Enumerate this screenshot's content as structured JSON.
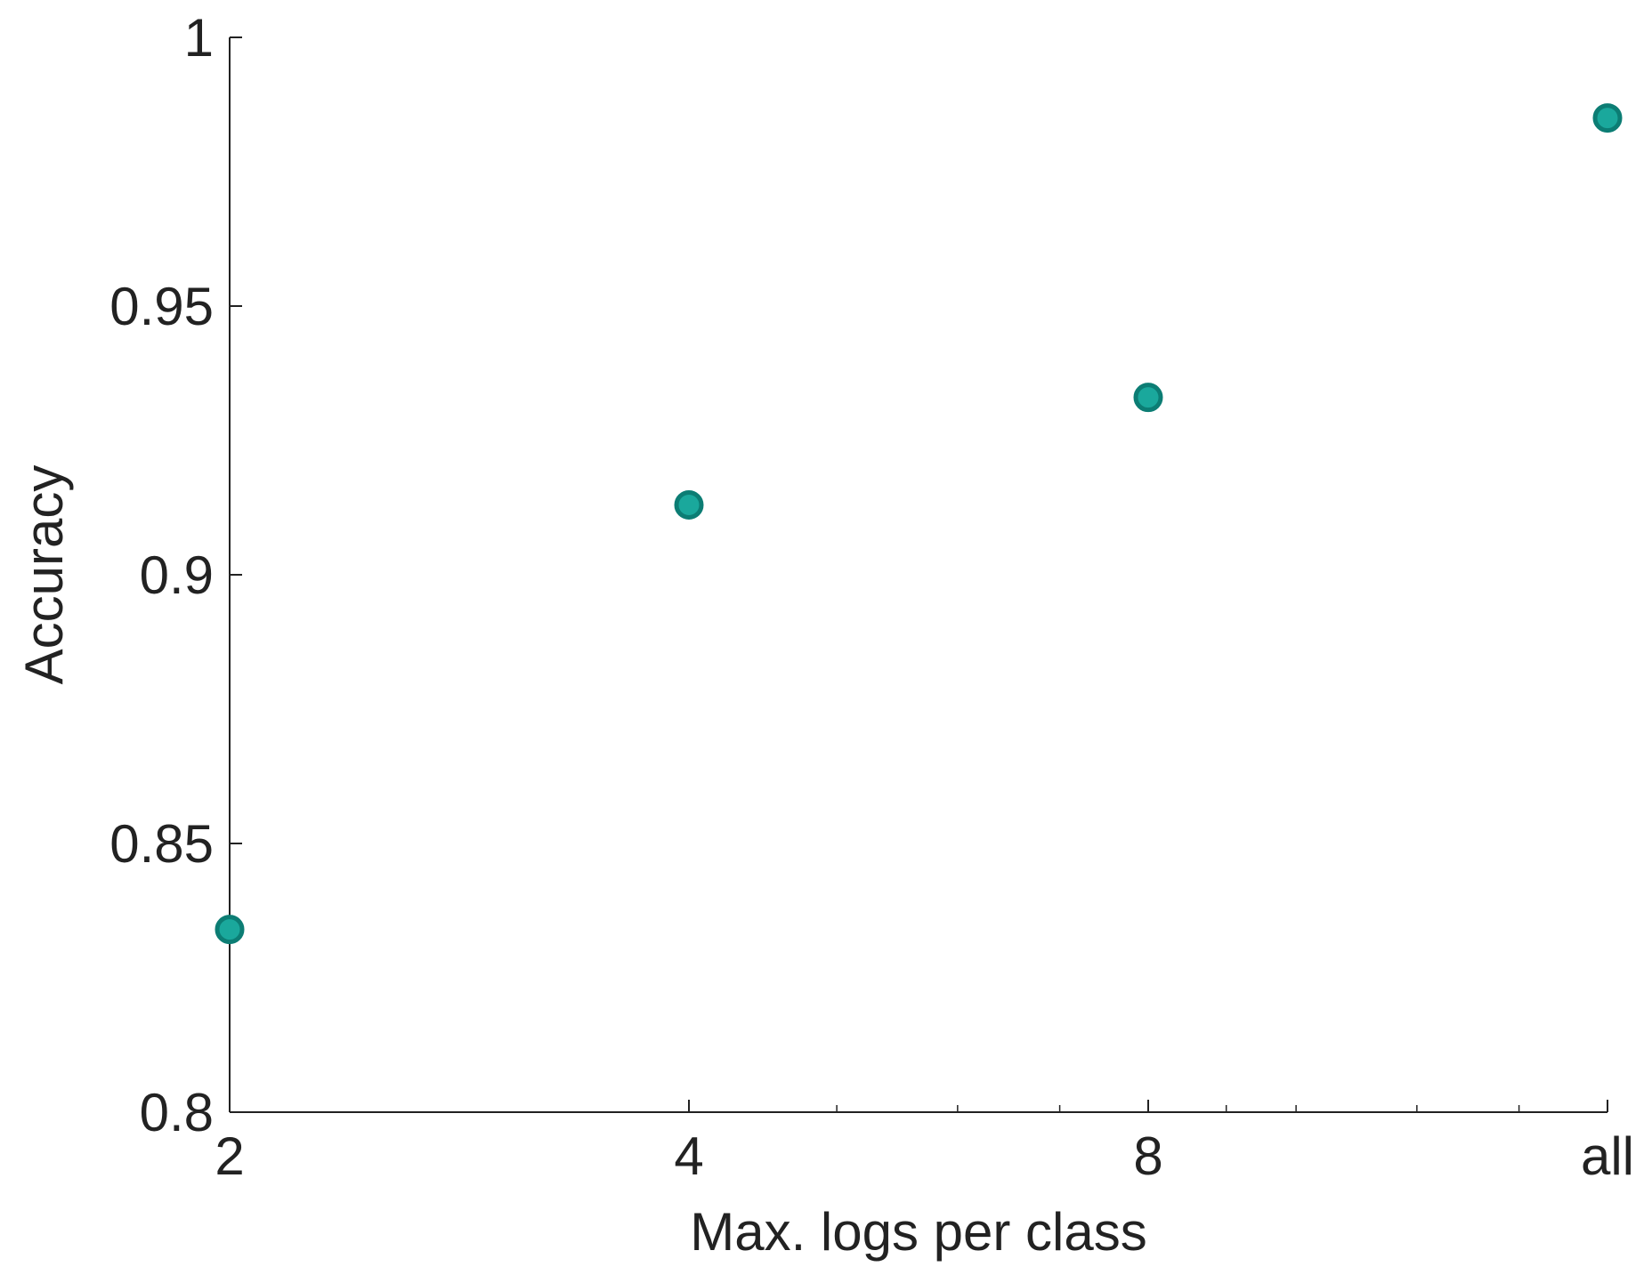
{
  "chart_data": {
    "type": "scatter",
    "x_scale": "log2",
    "x": [
      "2",
      "4",
      "8",
      "all"
    ],
    "x_positions": [
      2,
      4,
      8,
      16
    ],
    "y": [
      0.834,
      0.913,
      0.933,
      0.985
    ],
    "xlabel": "Max. logs per class",
    "ylabel": "Accuracy",
    "ylim": [
      0.8,
      1.0
    ],
    "yticks": [
      "0.8",
      "0.85",
      "0.9",
      "0.95",
      "1"
    ],
    "ytick_values": [
      0.8,
      0.85,
      0.9,
      0.95,
      1.0
    ],
    "xticks": [
      "2",
      "4",
      "8",
      "all"
    ],
    "xtick_values": [
      2,
      4,
      8,
      16
    ],
    "minor_xticks": [
      5,
      6,
      7,
      9,
      10,
      12,
      14
    ],
    "grid": false,
    "legend": "none",
    "marker_color": "#1aa89c",
    "marker_edge_color": "#0c7d74",
    "axis_color": "#222222"
  }
}
